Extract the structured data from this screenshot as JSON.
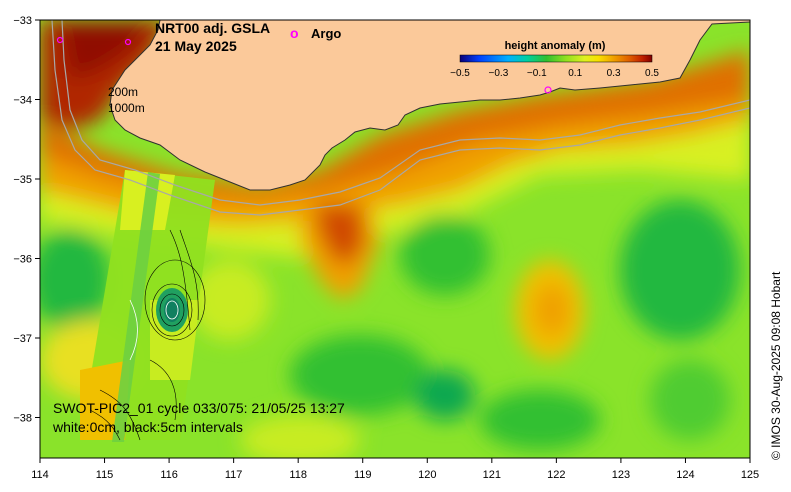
{
  "title": {
    "line1": "NRT00 adj. GSLA",
    "line2": "21 May 2025"
  },
  "legend": {
    "argo_symbol": "o",
    "argo_label": "Argo",
    "argo_color": "#ff00ff"
  },
  "bathymetry": {
    "label_200": "200m",
    "label_1000": "1000m"
  },
  "colorbar": {
    "title": "height anomaly (m)",
    "tick_labels": [
      "−0.5",
      "−0.3",
      "−0.1",
      "0.1",
      "0.3",
      "0.5"
    ],
    "colors": [
      "#0a0078",
      "#0040ff",
      "#00a0ff",
      "#00d0a0",
      "#20c030",
      "#80e020",
      "#d8f020",
      "#f8e000",
      "#f0a000",
      "#e06000",
      "#c02000",
      "#800000"
    ]
  },
  "swot": {
    "line1": "SWOT-PIC2_01 cycle 033/075: 21/05/25 13:27",
    "line2": "white:0cm, black:5cm intervals"
  },
  "credit": "© IMOS 30-Aug-2025 09:08 Hobart",
  "axes": {
    "x_ticks": [
      "114",
      "115",
      "116",
      "117",
      "118",
      "119",
      "120",
      "121",
      "122",
      "123",
      "124",
      "125"
    ],
    "y_ticks": [
      "−33",
      "−34",
      "−35",
      "−36",
      "−37",
      "−38"
    ]
  },
  "colors": {
    "land": "#fbc99a",
    "ocean_base": "#8ae32a"
  }
}
